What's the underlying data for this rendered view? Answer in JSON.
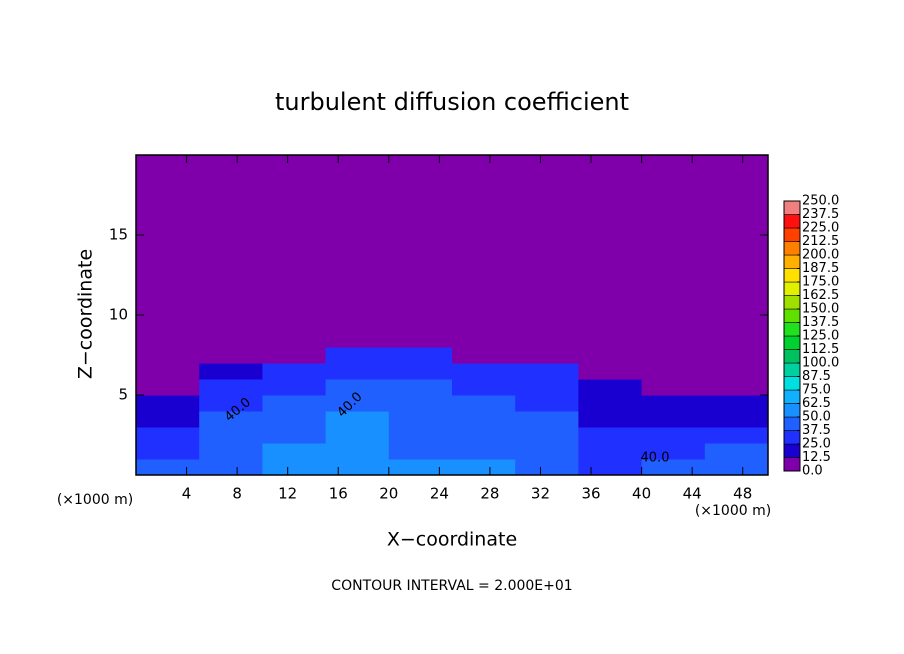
{
  "chart_data": {
    "type": "contour",
    "title": "turbulent diffusion coefficient",
    "x_label": "X−coordinate",
    "y_label": "Z−coordinate",
    "unit_labels": [
      "(×1000 m)",
      "(×1000 m)"
    ],
    "footer": "CONTOUR INTERVAL = 2.000E+01",
    "annotations": [
      "40.0",
      "40.0",
      "40.0"
    ],
    "xlim": [
      0,
      50
    ],
    "ylim": [
      0,
      20
    ],
    "xticks": [
      4,
      8,
      12,
      16,
      20,
      24,
      28,
      32,
      36,
      40,
      44,
      48
    ],
    "yticks": [
      5,
      10,
      15
    ],
    "x_edges": [
      0,
      5,
      10,
      15,
      20,
      25,
      30,
      35,
      40,
      45,
      50
    ],
    "z_edges": [
      0,
      1,
      2,
      3,
      4,
      5,
      6,
      7,
      8,
      10,
      20
    ],
    "values": [
      [
        40,
        45,
        55,
        50,
        50,
        50,
        45,
        35,
        40,
        45
      ],
      [
        35,
        45,
        50,
        50,
        45,
        45,
        40,
        30,
        35,
        40
      ],
      [
        30,
        45,
        45,
        50,
        45,
        40,
        40,
        25,
        30,
        30
      ],
      [
        20,
        40,
        45,
        50,
        40,
        40,
        40,
        20,
        20,
        20
      ],
      [
        15,
        35,
        40,
        45,
        40,
        40,
        35,
        20,
        15,
        15
      ],
      [
        10,
        30,
        35,
        40,
        40,
        35,
        30,
        15,
        10,
        10
      ],
      [
        5,
        20,
        35,
        35,
        35,
        30,
        25,
        5,
        5,
        5
      ],
      [
        0,
        5,
        10,
        25,
        25,
        10,
        5,
        0,
        0,
        0
      ],
      [
        0,
        0,
        0,
        5,
        5,
        0,
        0,
        0,
        0,
        0
      ],
      [
        0,
        0,
        0,
        0,
        0,
        0,
        0,
        0,
        0,
        0
      ]
    ],
    "colorbar_ticks": [
      {
        "value": 0,
        "label": "0.0"
      },
      {
        "value": 12.5,
        "label": "12.5"
      },
      {
        "value": 25,
        "label": "25.0"
      },
      {
        "value": 37.5,
        "label": "37.5"
      },
      {
        "value": 50,
        "label": "50.0"
      },
      {
        "value": 62.5,
        "label": "62.5"
      },
      {
        "value": 75,
        "label": "75.0"
      },
      {
        "value": 87.5,
        "label": "87.5"
      },
      {
        "value": 100,
        "label": "100.0"
      },
      {
        "value": 112.5,
        "label": "112.5"
      },
      {
        "value": 125,
        "label": "125.0"
      },
      {
        "value": 137.5,
        "label": "137.5"
      },
      {
        "value": 150,
        "label": "150.0"
      },
      {
        "value": 162.5,
        "label": "162.5"
      },
      {
        "value": 175,
        "label": "175.0"
      },
      {
        "value": 187.5,
        "label": "187.5"
      },
      {
        "value": 200,
        "label": "200.0"
      },
      {
        "value": 212.5,
        "label": "212.5"
      },
      {
        "value": 225,
        "label": "225.0"
      },
      {
        "value": 237.5,
        "label": "237.5"
      },
      {
        "value": 250,
        "label": "250.0"
      }
    ],
    "colors": [
      "#7f00aa",
      "#1a00d0",
      "#2030ff",
      "#2060ff",
      "#1890ff",
      "#10b0ff",
      "#00e0e0",
      "#00d0a0",
      "#00c060",
      "#00d030",
      "#20e020",
      "#60e000",
      "#a0e000",
      "#e0f000",
      "#ffe000",
      "#ffb000",
      "#ff8000",
      "#ff4000",
      "#ff1010",
      "#f08080"
    ]
  }
}
